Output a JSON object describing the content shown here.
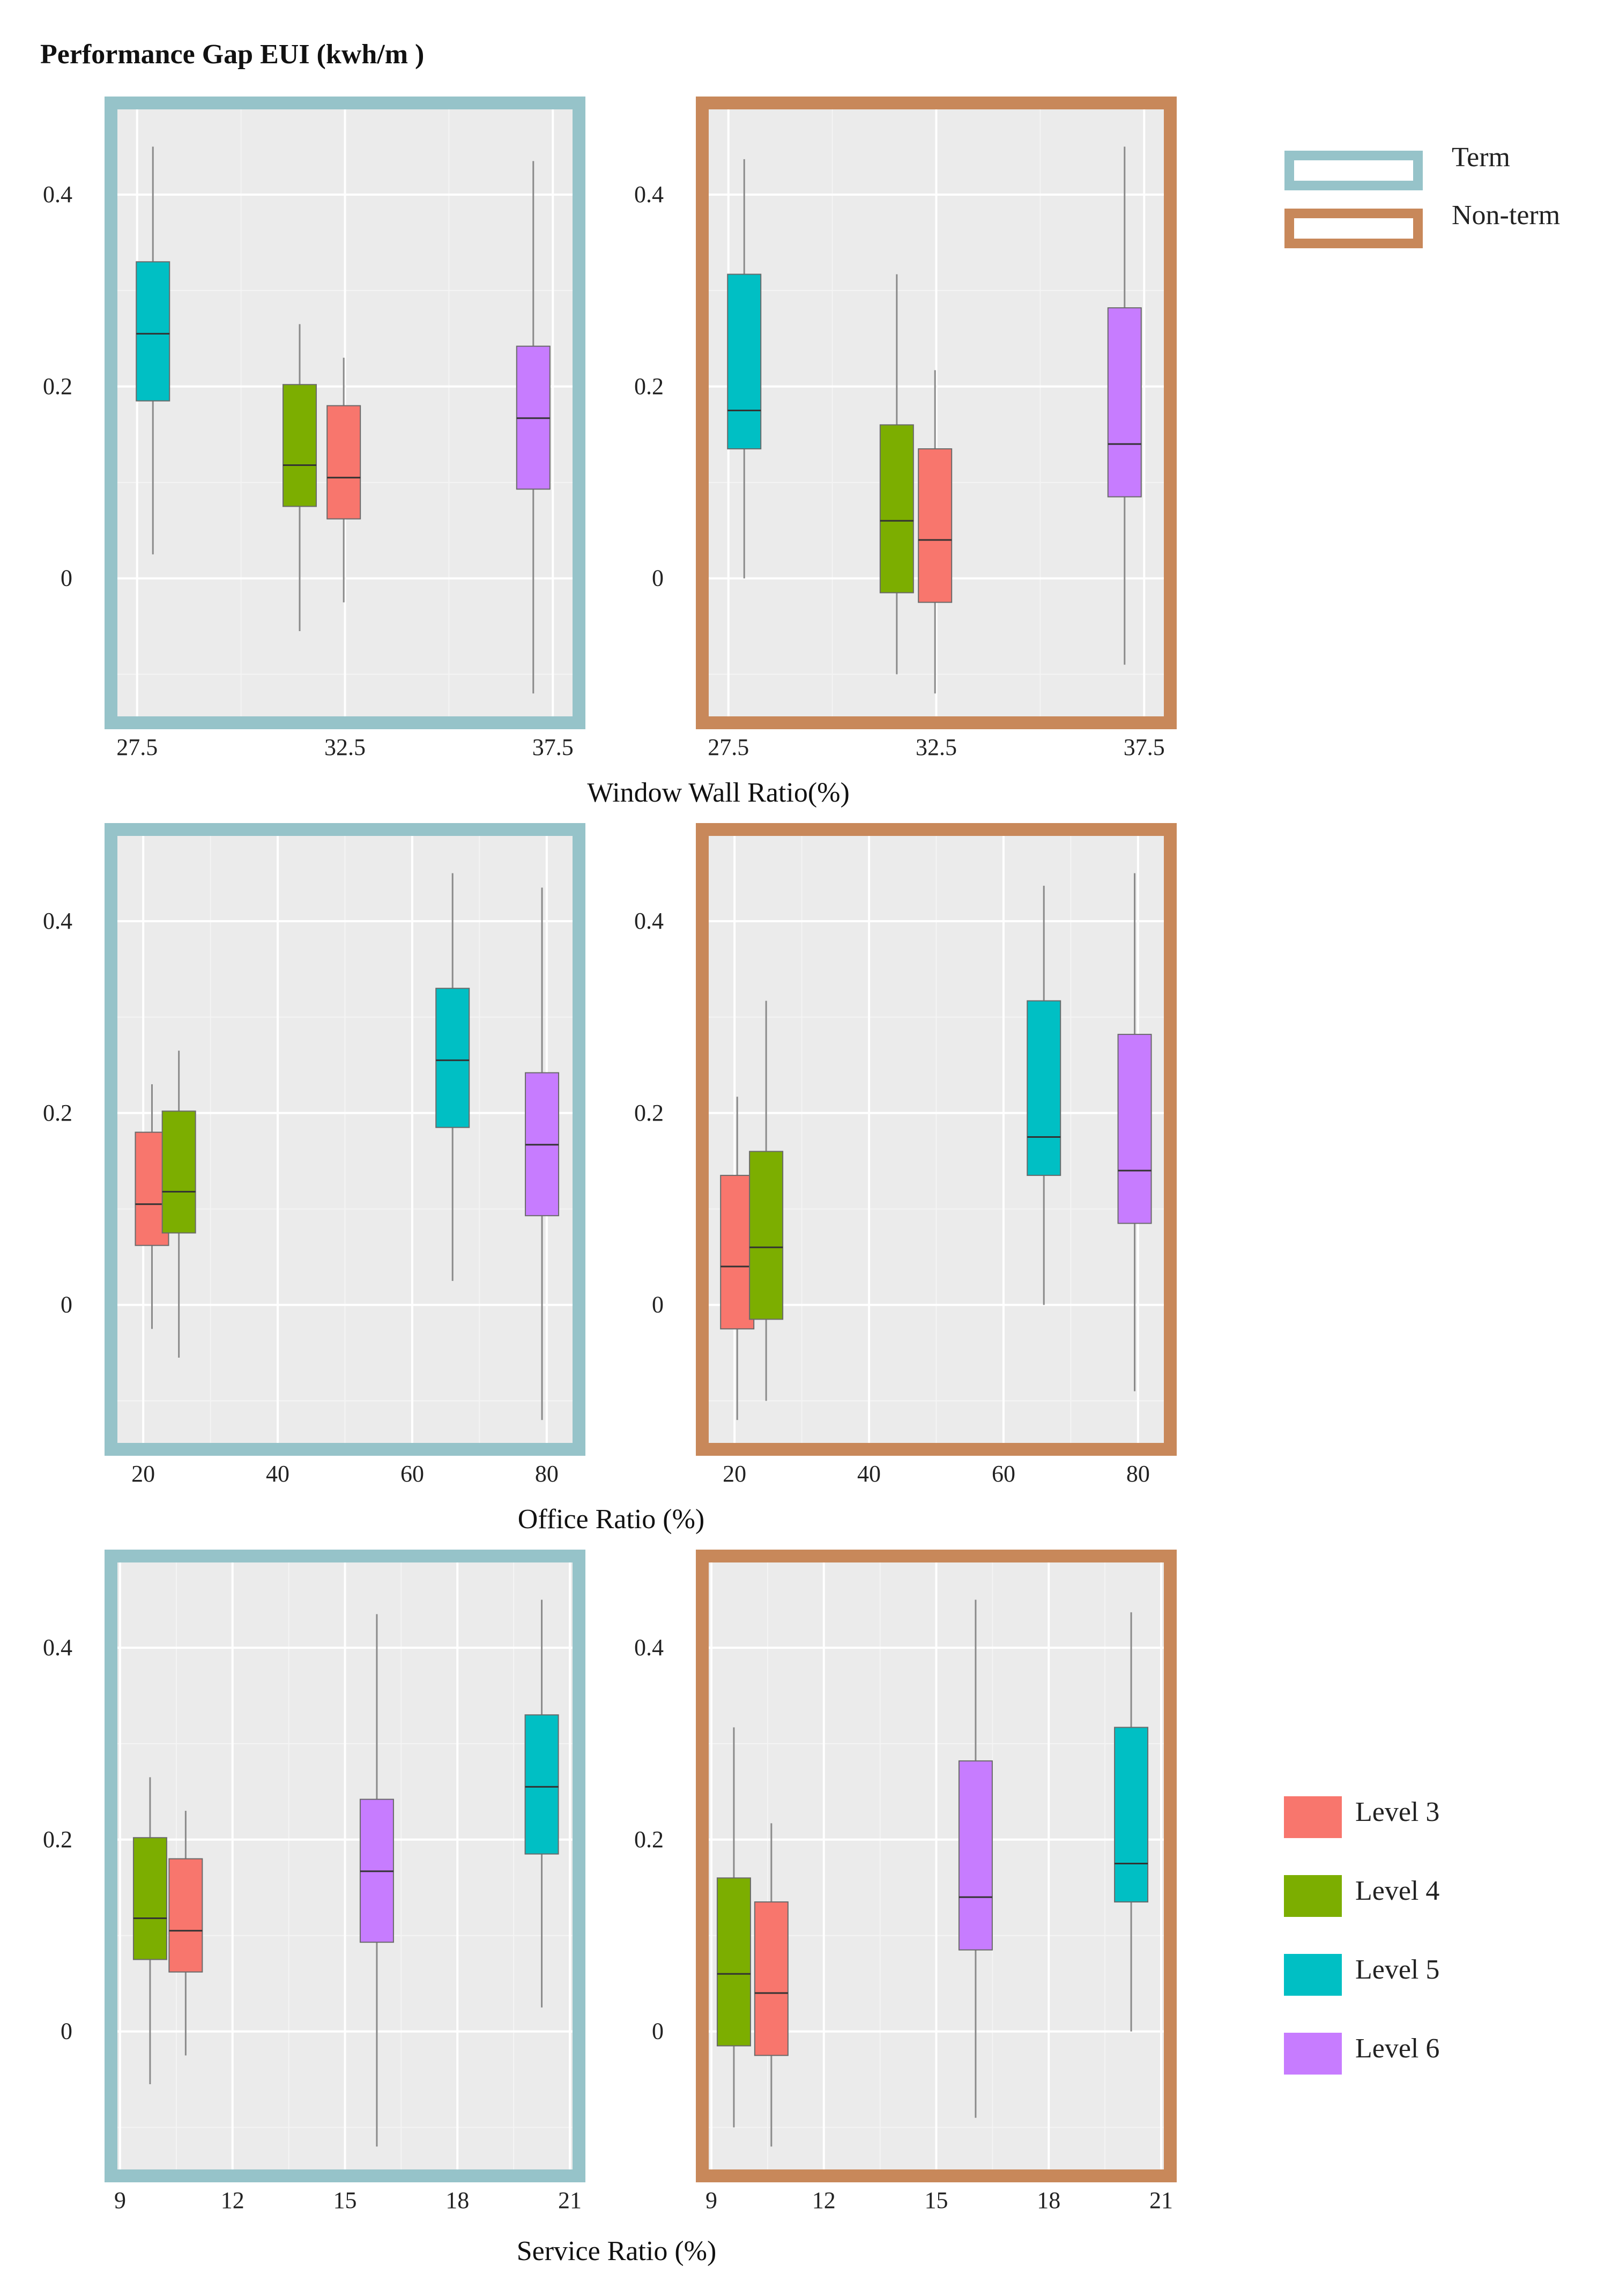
{
  "y_axis_title": "Performance Gap EUI (kwh/m )",
  "term_legend": {
    "items": [
      {
        "label": "Term",
        "color": "#96c3c9"
      },
      {
        "label": "Non-term",
        "color": "#c8885a"
      }
    ]
  },
  "level_legend": {
    "items": [
      {
        "label": "Level 3",
        "color": "#f8766d"
      },
      {
        "label": "Level 4",
        "color": "#7cae00"
      },
      {
        "label": "Level 5",
        "color": "#00bfc4"
      },
      {
        "label": "Level 6",
        "color": "#c77cff"
      }
    ]
  },
  "chart_data": [
    {
      "type": "boxplot",
      "row": 0,
      "panel": "Term",
      "xlabel": "Window Wall Ratio(%)",
      "xlim": [
        27.0,
        38.0
      ],
      "xticks": [
        27.5,
        32.5,
        37.5
      ],
      "xtick_labels": [
        "27.5",
        "32.5",
        "37.5"
      ],
      "ylim": [
        -0.145,
        0.49
      ],
      "yticks": [
        0,
        0.2,
        0.4
      ],
      "ytick_labels": [
        "0",
        "0.2",
        "0.4"
      ],
      "grid": true,
      "boxes": [
        {
          "level": "Level 5",
          "x": 27.88,
          "whisker_low": 0.025,
          "q1": 0.185,
          "median": 0.255,
          "q3": 0.33,
          "whisker_high": 0.45
        },
        {
          "level": "Level 4",
          "x": 31.41,
          "whisker_low": -0.055,
          "q1": 0.075,
          "median": 0.118,
          "q3": 0.202,
          "whisker_high": 0.265
        },
        {
          "level": "Level 3",
          "x": 32.47,
          "whisker_low": -0.025,
          "q1": 0.062,
          "median": 0.105,
          "q3": 0.18,
          "whisker_high": 0.23
        },
        {
          "level": "Level 6",
          "x": 37.03,
          "whisker_low": -0.12,
          "q1": 0.093,
          "median": 0.167,
          "q3": 0.242,
          "whisker_high": 0.435
        }
      ]
    },
    {
      "type": "boxplot",
      "row": 0,
      "panel": "Non-term",
      "xlabel": "Window Wall Ratio(%)",
      "xlim": [
        27.0,
        38.0
      ],
      "xticks": [
        27.5,
        32.5,
        37.5
      ],
      "xtick_labels": [
        "27.5",
        "32.5",
        "37.5"
      ],
      "ylim": [
        -0.145,
        0.49
      ],
      "yticks": [
        0,
        0.2,
        0.4
      ],
      "ytick_labels": [
        "0",
        "0.2",
        "0.4"
      ],
      "grid": true,
      "boxes": [
        {
          "level": "Level 5",
          "x": 27.88,
          "whisker_low": 0.0,
          "q1": 0.135,
          "median": 0.175,
          "q3": 0.317,
          "whisker_high": 0.437
        },
        {
          "level": "Level 4",
          "x": 31.55,
          "whisker_low": -0.1,
          "q1": -0.015,
          "median": 0.06,
          "q3": 0.16,
          "whisker_high": 0.317
        },
        {
          "level": "Level 3",
          "x": 32.47,
          "whisker_low": -0.12,
          "q1": -0.025,
          "median": 0.04,
          "q3": 0.135,
          "whisker_high": 0.217
        },
        {
          "level": "Level 6",
          "x": 37.03,
          "whisker_low": -0.09,
          "q1": 0.085,
          "median": 0.14,
          "q3": 0.282,
          "whisker_high": 0.45
        }
      ]
    },
    {
      "type": "boxplot",
      "row": 1,
      "panel": "Term",
      "xlabel": "Office Ratio (%)",
      "xlim": [
        16.0,
        84.0
      ],
      "xticks": [
        20,
        40,
        60,
        80
      ],
      "xtick_labels": [
        "20",
        "40",
        "60",
        "80"
      ],
      "ylim": [
        -0.145,
        0.49
      ],
      "yticks": [
        0,
        0.2,
        0.4
      ],
      "ytick_labels": [
        "0",
        "0.2",
        "0.4"
      ],
      "grid": true,
      "boxes": [
        {
          "level": "Level 3",
          "x": 21.3,
          "whisker_low": -0.025,
          "q1": 0.062,
          "median": 0.105,
          "q3": 0.18,
          "whisker_high": 0.23
        },
        {
          "level": "Level 4",
          "x": 25.3,
          "whisker_low": -0.055,
          "q1": 0.075,
          "median": 0.118,
          "q3": 0.202,
          "whisker_high": 0.265
        },
        {
          "level": "Level 5",
          "x": 66.0,
          "whisker_low": 0.025,
          "q1": 0.185,
          "median": 0.255,
          "q3": 0.33,
          "whisker_high": 0.45
        },
        {
          "level": "Level 6",
          "x": 79.3,
          "whisker_low": -0.12,
          "q1": 0.093,
          "median": 0.167,
          "q3": 0.242,
          "whisker_high": 0.435
        }
      ]
    },
    {
      "type": "boxplot",
      "row": 1,
      "panel": "Non-term",
      "xlabel": "Office Ratio (%)",
      "xlim": [
        16.0,
        84.0
      ],
      "xticks": [
        20,
        40,
        60,
        80
      ],
      "xtick_labels": [
        "20",
        "40",
        "60",
        "80"
      ],
      "ylim": [
        -0.145,
        0.49
      ],
      "yticks": [
        0,
        0.2,
        0.4
      ],
      "ytick_labels": [
        "0",
        "0.2",
        "0.4"
      ],
      "grid": true,
      "boxes": [
        {
          "level": "Level 3",
          "x": 20.4,
          "whisker_low": -0.12,
          "q1": -0.025,
          "median": 0.04,
          "q3": 0.135,
          "whisker_high": 0.217
        },
        {
          "level": "Level 4",
          "x": 24.7,
          "whisker_low": -0.1,
          "q1": -0.015,
          "median": 0.06,
          "q3": 0.16,
          "whisker_high": 0.317
        },
        {
          "level": "Level 5",
          "x": 66.0,
          "whisker_low": 0.0,
          "q1": 0.135,
          "median": 0.175,
          "q3": 0.317,
          "whisker_high": 0.437
        },
        {
          "level": "Level 6",
          "x": 79.5,
          "whisker_low": -0.09,
          "q1": 0.085,
          "median": 0.14,
          "q3": 0.282,
          "whisker_high": 0.45
        }
      ]
    },
    {
      "type": "boxplot",
      "row": 2,
      "panel": "Term",
      "xlabel": "Service Ratio (%)",
      "xlim": [
        8.9,
        21.1
      ],
      "xticks": [
        9,
        12,
        15,
        18,
        21
      ],
      "xtick_labels": [
        "9",
        "12",
        "15",
        "18",
        "21"
      ],
      "ylim": [
        -0.145,
        0.49
      ],
      "yticks": [
        0,
        0.2,
        0.4
      ],
      "ytick_labels": [
        "0",
        "0.2",
        "0.4"
      ],
      "grid": true,
      "boxes": [
        {
          "level": "Level 4",
          "x": 9.8,
          "whisker_low": -0.055,
          "q1": 0.075,
          "median": 0.118,
          "q3": 0.202,
          "whisker_high": 0.265
        },
        {
          "level": "Level 3",
          "x": 10.75,
          "whisker_low": -0.025,
          "q1": 0.062,
          "median": 0.105,
          "q3": 0.18,
          "whisker_high": 0.23
        },
        {
          "level": "Level 6",
          "x": 15.85,
          "whisker_low": -0.12,
          "q1": 0.093,
          "median": 0.167,
          "q3": 0.242,
          "whisker_high": 0.435
        },
        {
          "level": "Level 5",
          "x": 20.25,
          "whisker_low": 0.025,
          "q1": 0.185,
          "median": 0.255,
          "q3": 0.33,
          "whisker_high": 0.45
        }
      ]
    },
    {
      "type": "boxplot",
      "row": 2,
      "panel": "Non-term",
      "xlabel": "Service Ratio (%)",
      "xlim": [
        8.9,
        21.1
      ],
      "xticks": [
        9,
        12,
        15,
        18,
        21
      ],
      "xtick_labels": [
        "9",
        "12",
        "15",
        "18",
        "21"
      ],
      "ylim": [
        -0.145,
        0.49
      ],
      "yticks": [
        0,
        0.2,
        0.4
      ],
      "ytick_labels": [
        "0",
        "0.2",
        "0.4"
      ],
      "grid": true,
      "boxes": [
        {
          "level": "Level 4",
          "x": 9.6,
          "whisker_low": -0.1,
          "q1": -0.015,
          "median": 0.06,
          "q3": 0.16,
          "whisker_high": 0.317
        },
        {
          "level": "Level 3",
          "x": 10.6,
          "whisker_low": -0.12,
          "q1": -0.025,
          "median": 0.04,
          "q3": 0.135,
          "whisker_high": 0.217
        },
        {
          "level": "Level 6",
          "x": 16.05,
          "whisker_low": -0.09,
          "q1": 0.085,
          "median": 0.14,
          "q3": 0.282,
          "whisker_high": 0.45
        },
        {
          "level": "Level 5",
          "x": 20.2,
          "whisker_low": 0.0,
          "q1": 0.135,
          "median": 0.175,
          "q3": 0.317,
          "whisker_high": 0.437
        }
      ]
    }
  ]
}
